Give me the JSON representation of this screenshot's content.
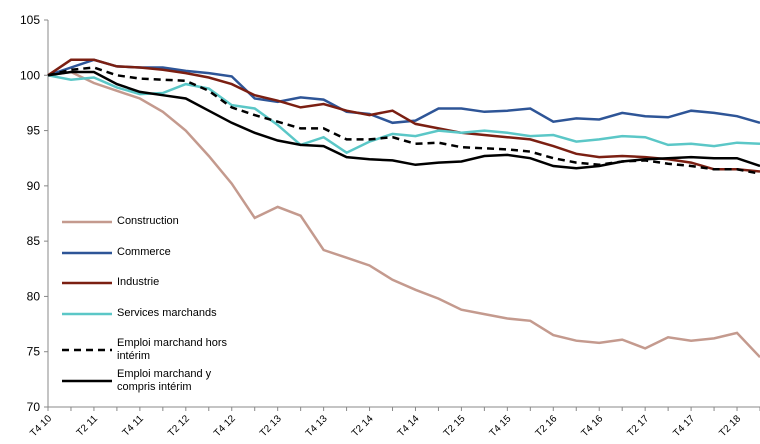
{
  "chart_data": {
    "type": "line",
    "categories": [
      "T4 10",
      null,
      "T2 11",
      null,
      "T4 11",
      null,
      "T2 12",
      null,
      "T4 12",
      null,
      "T2 13",
      null,
      "T4 13",
      null,
      "T2 14",
      null,
      "T4 14",
      null,
      "T2 15",
      null,
      "T4 15",
      null,
      "T2 16",
      null,
      "T4 16",
      null,
      "T2 17",
      null,
      "T4 17",
      null,
      "T2 18",
      null
    ],
    "ylim": [
      70,
      105
    ],
    "yticks": [
      70,
      75,
      80,
      85,
      90,
      95,
      100,
      105
    ],
    "grid": false,
    "legend": "bottom-left",
    "series": [
      {
        "name": "Construction",
        "color": "#c49a8e",
        "style": "solid",
        "values": [
          100,
          100.3,
          99.3,
          98.6,
          97.9,
          96.7,
          95,
          92.7,
          90.2,
          87.1,
          88.1,
          87.3,
          84.2,
          83.5,
          82.8,
          81.5,
          80.6,
          79.8,
          78.8,
          78.4,
          78,
          77.8,
          76.5,
          76,
          75.8,
          76.1,
          75.3,
          76.3,
          76,
          76.2,
          76.7,
          74.5
        ]
      },
      {
        "name": "Commerce",
        "color": "#2e5597",
        "style": "solid",
        "values": [
          100,
          100.7,
          101.4,
          100.8,
          100.7,
          100.7,
          100.4,
          100.2,
          99.9,
          97.9,
          97.6,
          98,
          97.8,
          96.7,
          96.5,
          95.7,
          95.9,
          97,
          97,
          96.7,
          96.8,
          97,
          95.8,
          96.1,
          96,
          96.6,
          96.3,
          96.2,
          96.8,
          96.6,
          96.3,
          95.7
        ]
      },
      {
        "name": "Industrie",
        "color": "#7b1f12",
        "style": "solid",
        "values": [
          100,
          101.4,
          101.4,
          100.8,
          100.7,
          100.5,
          100.2,
          99.8,
          99.2,
          98.2,
          97.7,
          97.1,
          97.4,
          96.8,
          96.4,
          96.8,
          95.6,
          95.2,
          94.8,
          94.6,
          94.4,
          94.2,
          93.6,
          92.9,
          92.6,
          92.7,
          92.6,
          92.4,
          92.1,
          91.5,
          91.5,
          91.3
        ]
      },
      {
        "name": "Services marchands",
        "color": "#5bc7c7",
        "style": "solid",
        "values": [
          100,
          99.6,
          99.8,
          98.9,
          98.3,
          98.4,
          99.2,
          98.8,
          97.3,
          97,
          95.5,
          93.7,
          94.4,
          93,
          94,
          94.7,
          94.5,
          95,
          94.8,
          95,
          94.8,
          94.5,
          94.6,
          94,
          94.2,
          94.5,
          94.4,
          93.7,
          93.8,
          93.6,
          93.9,
          93.8
        ]
      },
      {
        "name": "Emploi marchand hors intérim",
        "color": "#000000",
        "style": "dashed",
        "values": [
          100,
          100.5,
          100.7,
          100,
          99.7,
          99.6,
          99.5,
          98.6,
          97.1,
          96.4,
          95.8,
          95.2,
          95.2,
          94.2,
          94.2,
          94.4,
          93.8,
          93.9,
          93.5,
          93.4,
          93.3,
          93.1,
          92.5,
          92.1,
          91.9,
          92.2,
          92.3,
          92,
          91.8,
          91.5,
          91.5,
          91.1
        ]
      },
      {
        "name": "Emploi marchand y compris intérim",
        "color": "#000000",
        "style": "solid",
        "values": [
          100,
          100.3,
          100.3,
          99.2,
          98.5,
          98.2,
          97.9,
          96.8,
          95.7,
          94.8,
          94.1,
          93.7,
          93.6,
          92.6,
          92.4,
          92.3,
          91.9,
          92.1,
          92.2,
          92.7,
          92.8,
          92.5,
          91.8,
          91.6,
          91.8,
          92.2,
          92.4,
          92.5,
          92.6,
          92.5,
          92.5,
          91.8
        ]
      }
    ]
  }
}
